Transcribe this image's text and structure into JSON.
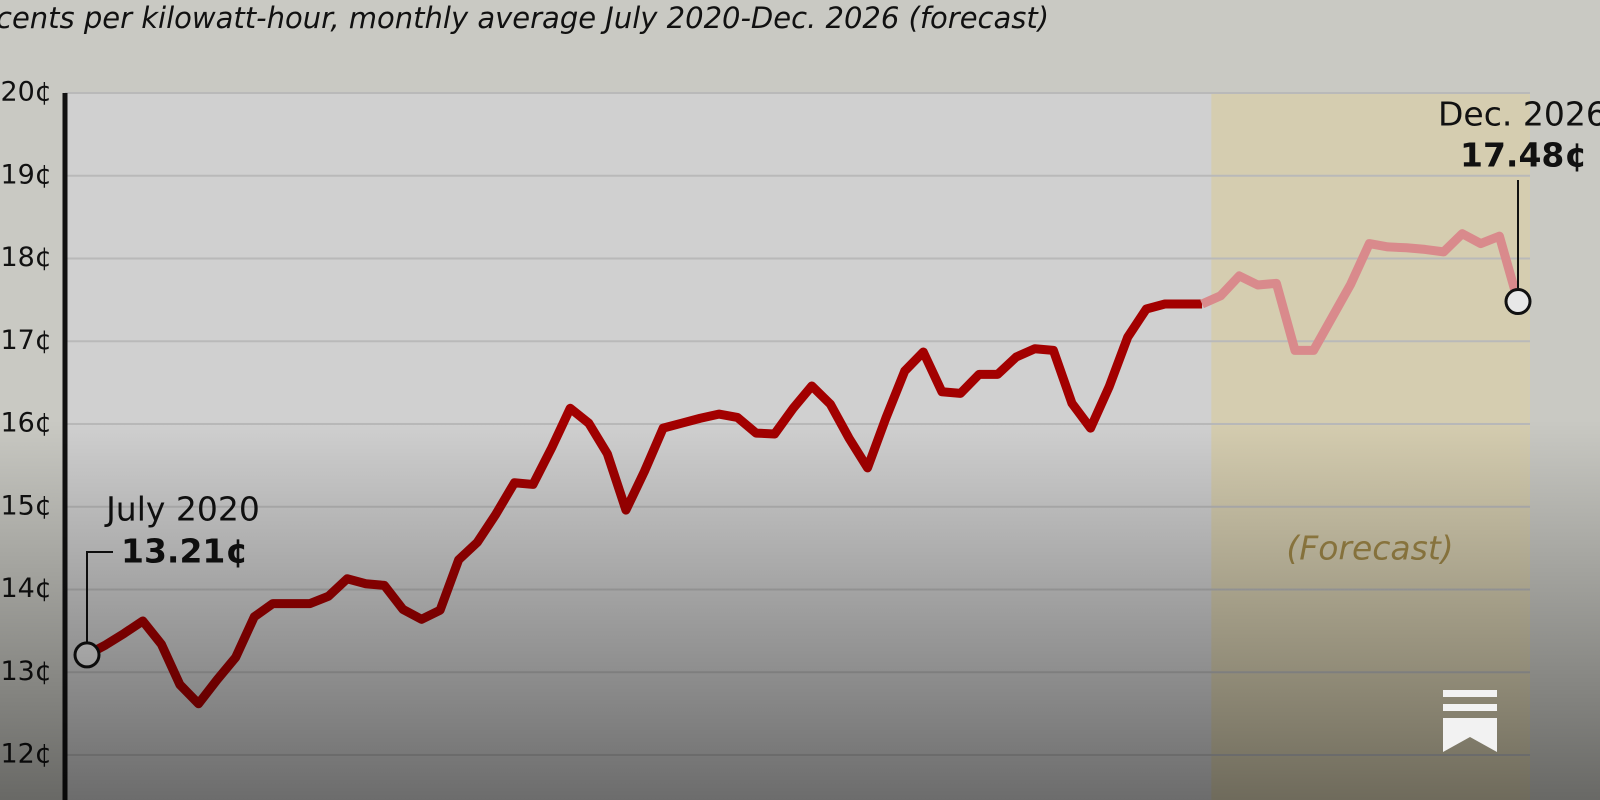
{
  "chart_data": {
    "type": "line",
    "subtitle": "cents per kilowatt-hour, monthly average July 2020-Dec. 2026 (forecast)",
    "categories": [
      null,
      null,
      null,
      null,
      null,
      null,
      null,
      null,
      null,
      null,
      null,
      null,
      null,
      null,
      null,
      null,
      null,
      null,
      null,
      null,
      null,
      null,
      null,
      null,
      null,
      null,
      null,
      null,
      null,
      null,
      null,
      null,
      null,
      null,
      null,
      null,
      null,
      null,
      null,
      null,
      null,
      null,
      null,
      null,
      null,
      null,
      null,
      null,
      null,
      null,
      null,
      null,
      null,
      null,
      null,
      null,
      null,
      null,
      null,
      null,
      null,
      null,
      null,
      null,
      null,
      null,
      null,
      null,
      null,
      null,
      null,
      null,
      null,
      null,
      null,
      null,
      null,
      null
    ],
    "series": [
      {
        "color": "#a30000",
        "values": [
          13.21,
          13.33,
          13.47,
          13.62,
          13.34,
          12.85,
          12.62,
          12.91,
          13.18,
          13.67,
          13.83,
          13.83,
          13.83,
          13.92,
          14.13,
          14.07,
          14.05,
          13.76,
          13.64,
          13.75,
          14.36,
          14.57,
          14.91,
          15.29,
          15.27,
          15.71,
          16.19,
          16.01,
          15.64,
          14.96,
          15.43,
          15.95,
          16.01,
          16.07,
          16.12,
          16.08,
          15.89,
          15.88,
          16.19,
          16.46,
          16.24,
          15.83,
          15.47,
          16.08,
          16.64,
          16.87,
          16.39,
          16.37,
          16.6,
          16.6,
          16.81,
          16.91,
          16.89,
          16.25,
          15.95,
          16.45,
          17.05,
          17.39,
          17.45,
          17.45,
          17.45,
          null,
          null,
          null,
          null,
          null,
          null,
          null,
          null,
          null,
          null,
          null,
          null,
          null,
          null,
          null,
          null,
          null
        ]
      },
      {
        "color": "#d98a8c",
        "values": [
          null,
          null,
          null,
          null,
          null,
          null,
          null,
          null,
          null,
          null,
          null,
          null,
          null,
          null,
          null,
          null,
          null,
          null,
          null,
          null,
          null,
          null,
          null,
          null,
          null,
          null,
          null,
          null,
          null,
          null,
          null,
          null,
          null,
          null,
          null,
          null,
          null,
          null,
          null,
          null,
          null,
          null,
          null,
          null,
          null,
          null,
          null,
          null,
          null,
          null,
          null,
          null,
          null,
          null,
          null,
          null,
          null,
          null,
          null,
          null,
          17.45,
          17.55,
          17.79,
          17.68,
          17.7,
          16.89,
          16.89,
          17.29,
          17.69,
          18.18,
          18.14,
          18.13,
          18.11,
          18.08,
          18.3,
          18.18,
          18.27,
          17.48
        ]
      }
    ],
    "ylim": [
      11.65,
      20
    ],
    "yticks": [
      {
        "value": 12,
        "label": "12¢"
      },
      {
        "value": 13,
        "label": "13¢"
      },
      {
        "value": 14,
        "label": "14¢"
      },
      {
        "value": 15,
        "label": "15¢"
      },
      {
        "value": 16,
        "label": "16¢"
      },
      {
        "value": 17,
        "label": "17¢"
      },
      {
        "value": 18,
        "label": "18¢"
      },
      {
        "value": 19,
        "label": "19¢"
      },
      {
        "value": 20,
        "label": "20¢"
      }
    ],
    "grid": true,
    "annotations": [
      {
        "text": "July 2020",
        "value_label": "13.21¢"
      },
      {
        "text": "Dec. 2026",
        "value_label": "17.48¢"
      }
    ],
    "forecast_label": "(Forecast)"
  }
}
